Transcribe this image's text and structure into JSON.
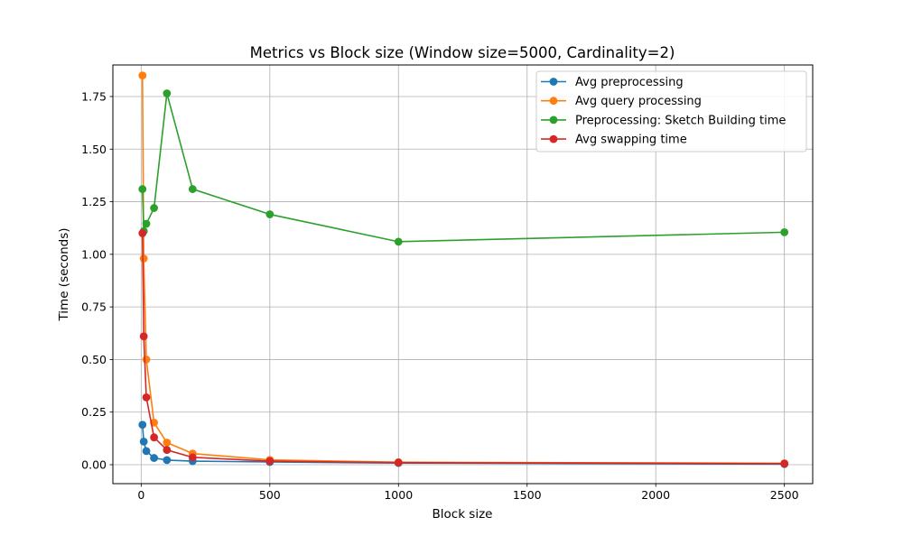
{
  "chart_data": {
    "type": "line",
    "title": "Metrics vs Block size (Window size=5000, Cardinality=2)",
    "xlabel": "Block size",
    "ylabel": "Time (seconds)",
    "xlim": [
      -110,
      2610
    ],
    "ylim": [
      -0.09,
      1.9
    ],
    "xticks": [
      0,
      500,
      1000,
      1500,
      2000,
      2500
    ],
    "xtick_labels": [
      "0",
      "500",
      "1000",
      "1500",
      "2000",
      "2500"
    ],
    "yticks": [
      0,
      0.25,
      0.5,
      0.75,
      1.0,
      1.25,
      1.5,
      1.75
    ],
    "ytick_labels": [
      "0.00",
      "0.25",
      "0.50",
      "0.75",
      "1.00",
      "1.25",
      "1.50",
      "1.75"
    ],
    "grid": true,
    "legend_position": "top-right",
    "series": [
      {
        "name": "Avg preprocessing",
        "color": "#1f77b4",
        "x": [
          5,
          10,
          20,
          50,
          100,
          200,
          500,
          1000,
          2500
        ],
        "y": [
          0.19,
          0.11,
          0.065,
          0.032,
          0.022,
          0.017,
          0.013,
          0.008,
          0.003
        ]
      },
      {
        "name": "Avg query processing",
        "color": "#ff7f0e",
        "x": [
          5,
          10,
          20,
          50,
          100,
          200,
          500,
          1000,
          2500
        ],
        "y": [
          1.85,
          0.98,
          0.5,
          0.2,
          0.105,
          0.053,
          0.023,
          0.012,
          0.007
        ]
      },
      {
        "name": "Preprocessing: Sketch Building time",
        "color": "#2ca02c",
        "x": [
          5,
          10,
          20,
          50,
          100,
          200,
          500,
          1000,
          2500
        ],
        "y": [
          1.31,
          1.11,
          1.145,
          1.22,
          1.765,
          1.31,
          1.19,
          1.06,
          1.105
        ]
      },
      {
        "name": "Avg swapping time",
        "color": "#d62728",
        "x": [
          5,
          10,
          20,
          50,
          100,
          200,
          500,
          1000,
          2500
        ],
        "y": [
          1.1,
          0.61,
          0.32,
          0.13,
          0.07,
          0.035,
          0.017,
          0.01,
          0.005
        ]
      }
    ]
  }
}
